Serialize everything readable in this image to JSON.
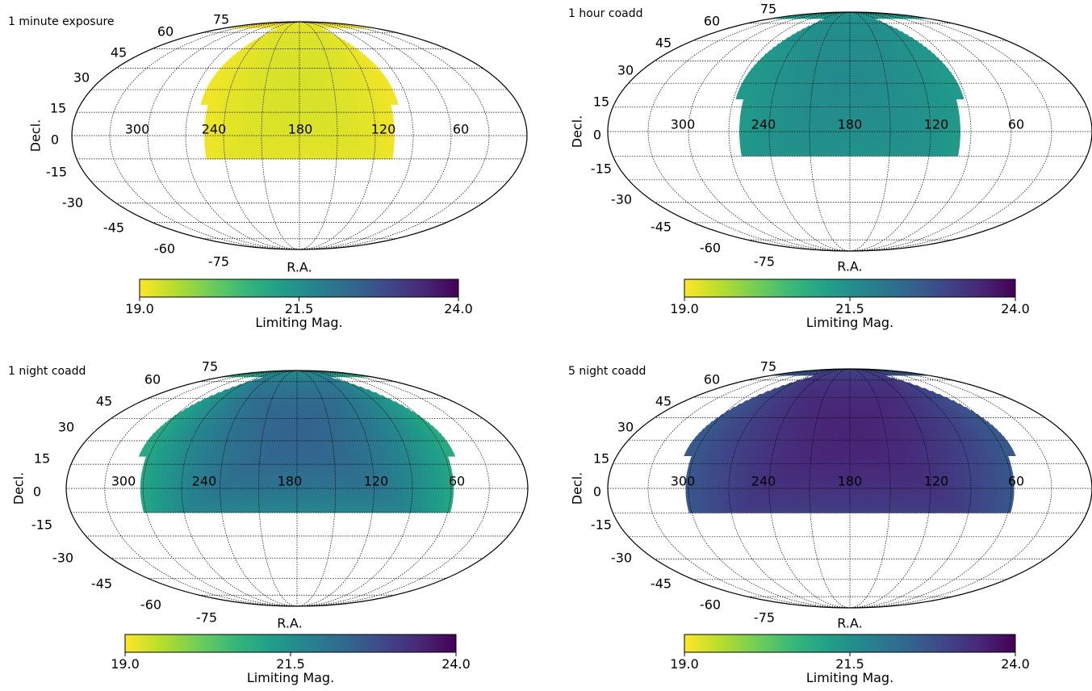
{
  "chart_data": [
    {
      "type": "heatmap",
      "projection": "Mollweide",
      "title": "1 minute exposure",
      "xlabel": "R.A.",
      "ylabel": "Decl.",
      "ra_tick_labels": [
        "300",
        "240",
        "180",
        "120",
        "60"
      ],
      "dec_tick_labels": [
        "75",
        "60",
        "45",
        "30",
        "15",
        "0",
        "-15",
        "-30",
        "-45",
        "-60",
        "-75"
      ],
      "coverage": {
        "dec_min": -15,
        "dec_max": 90,
        "ra_halfwidth_deg": 75
      },
      "limiting_mag": {
        "center": 19.3,
        "edge": 19.1
      },
      "colorbar": {
        "label": "Limiting Mag.",
        "range": [
          19.0,
          24.0
        ],
        "ticks": [
          "19.0",
          "21.5",
          "24.0"
        ],
        "colormap": "viridis_r"
      },
      "grid": true
    },
    {
      "type": "heatmap",
      "projection": "Mollweide",
      "title": "1 hour coadd",
      "xlabel": "R.A.",
      "ylabel": "Decl.",
      "ra_tick_labels": [
        "300",
        "240",
        "180",
        "120",
        "60"
      ],
      "dec_tick_labels": [
        "75",
        "60",
        "45",
        "30",
        "15",
        "0",
        "-15",
        "-30",
        "-45",
        "-60",
        "-75"
      ],
      "coverage": {
        "dec_min": -15,
        "dec_max": 90,
        "ra_halfwidth_deg": 82
      },
      "limiting_mag": {
        "center": 21.6,
        "edge": 21.3
      },
      "colorbar": {
        "label": "Limiting Mag.",
        "range": [
          19.0,
          24.0
        ],
        "ticks": [
          "19.0",
          "21.5",
          "24.0"
        ],
        "colormap": "viridis_r"
      },
      "grid": true
    },
    {
      "type": "heatmap",
      "projection": "Mollweide",
      "title": "1 night coadd",
      "xlabel": "R.A.",
      "ylabel": "Decl.",
      "ra_tick_labels": [
        "300",
        "240",
        "180",
        "120",
        "60"
      ],
      "dec_tick_labels": [
        "75",
        "60",
        "45",
        "30",
        "15",
        "0",
        "-15",
        "-30",
        "-45",
        "-60",
        "-75"
      ],
      "coverage": {
        "dec_min": -15,
        "dec_max": 90,
        "ra_halfwidth_deg": 122
      },
      "limiting_mag": {
        "center": 22.4,
        "edge": 21.0
      },
      "colorbar": {
        "label": "Limiting Mag.",
        "range": [
          19.0,
          24.0
        ],
        "ticks": [
          "19.0",
          "21.5",
          "24.0"
        ],
        "colormap": "viridis_r"
      },
      "grid": true
    },
    {
      "type": "heatmap",
      "projection": "Mollweide",
      "title": "5 night coadd",
      "xlabel": "R.A.",
      "ylabel": "Decl.",
      "ra_tick_labels": [
        "300",
        "240",
        "180",
        "120",
        "60"
      ],
      "dec_tick_labels": [
        "75",
        "60",
        "45",
        "30",
        "15",
        "0",
        "-15",
        "-30",
        "-45",
        "-60",
        "-75"
      ],
      "coverage": {
        "dec_min": -15,
        "dec_max": 90,
        "ra_halfwidth_deg": 122
      },
      "limiting_mag": {
        "center": 23.5,
        "edge": 22.6
      },
      "colorbar": {
        "label": "Limiting Mag.",
        "range": [
          19.0,
          24.0
        ],
        "ticks": [
          "19.0",
          "21.5",
          "24.0"
        ],
        "colormap": "viridis_r"
      },
      "grid": true
    }
  ]
}
